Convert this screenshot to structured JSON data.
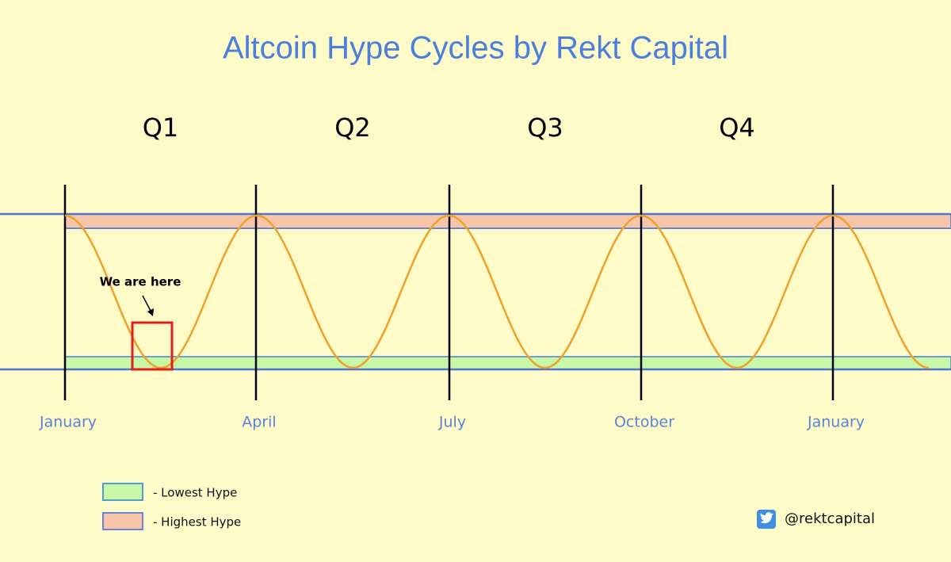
{
  "title": "Altcoin Hype Cycles by Rekt Capital",
  "quarters": [
    "Q1",
    "Q2",
    "Q3",
    "Q4"
  ],
  "months": [
    "January",
    "April",
    "July",
    "October",
    "January"
  ],
  "annotation": "We are here",
  "legend": [
    {
      "label": "- Lowest Hype",
      "color": "#c8f7a6"
    },
    {
      "label": "- Highest Hype",
      "color": "#f9c5a8"
    }
  ],
  "handle": "@rektcapital"
}
